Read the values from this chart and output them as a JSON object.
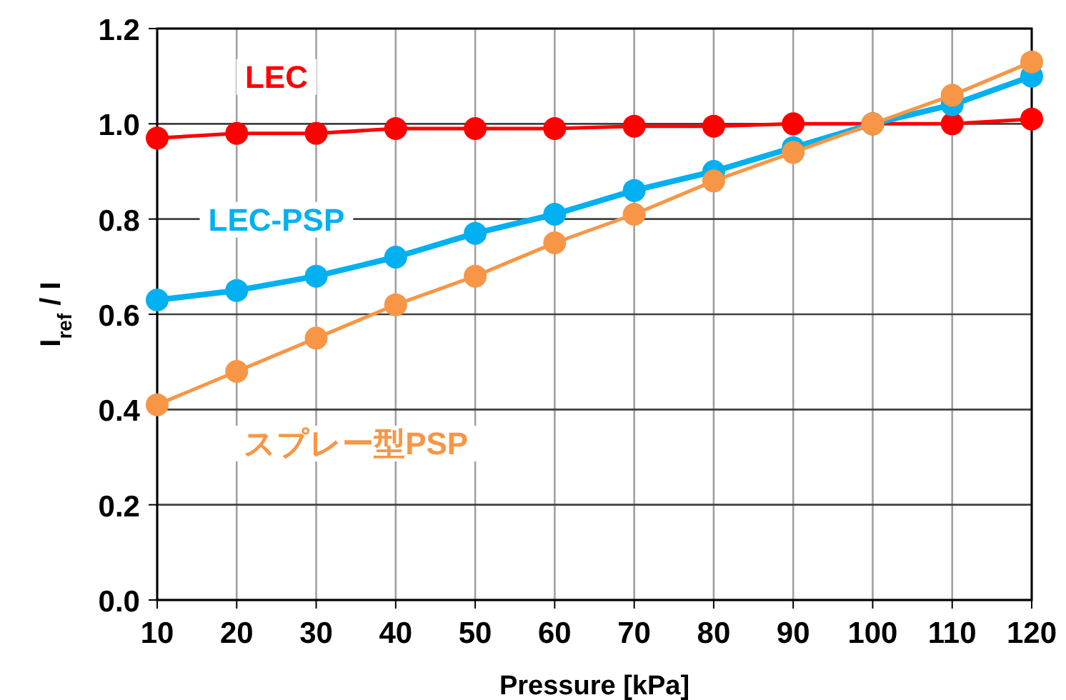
{
  "chart_data": {
    "type": "line",
    "xlabel": "Pressure [kPa]",
    "ylabel": "I$_{ref}$ / I",
    "x": [
      10,
      20,
      30,
      40,
      50,
      60,
      70,
      80,
      90,
      100,
      110,
      120
    ],
    "xlim": [
      10,
      120
    ],
    "xticks": [
      10,
      20,
      30,
      40,
      50,
      60,
      70,
      80,
      90,
      100,
      110,
      120
    ],
    "ylim": [
      0,
      1.2
    ],
    "yticks": [
      {
        "value": 0,
        "label": "0.0"
      },
      0.2,
      0.4,
      0.6,
      0.8,
      {
        "value": 1,
        "label": "1.0"
      },
      {
        "value": 1.2,
        "label": "1.2"
      }
    ],
    "grid": true,
    "marker": "circle",
    "line_style": "solid",
    "series": [
      {
        "name": "LEC",
        "color": "#ff0000",
        "values": [
          0.97,
          0.98,
          0.98,
          0.99,
          0.99,
          0.99,
          0.995,
          0.995,
          1.0,
          1.0,
          1.0,
          1.01
        ]
      },
      {
        "name": "LEC-PSP",
        "color": "#00b0f0",
        "values": [
          0.63,
          0.65,
          0.68,
          0.72,
          0.77,
          0.81,
          0.86,
          0.9,
          0.95,
          1.0,
          1.04,
          1.1
        ]
      },
      {
        "name": "スプレー型PSP",
        "color": "#f79646",
        "values": [
          0.41,
          0.48,
          0.55,
          0.62,
          0.68,
          0.75,
          0.81,
          0.88,
          0.94,
          1.0,
          1.06,
          1.13
        ]
      }
    ]
  }
}
